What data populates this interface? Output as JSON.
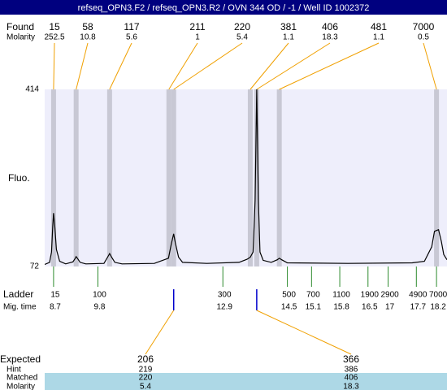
{
  "chart_data": {
    "type": "electropherogram",
    "title": "refseq_OPN3.F2 / refseq_OPN3.R2 / OVN 344 OD  / -1 / Well ID 1002372",
    "y_label": "Fluo.",
    "ylim": [
      72,
      414
    ],
    "yticks": [
      72,
      414
    ],
    "xlim": [
      8.48,
      18.46
    ],
    "found": {
      "label": "Found",
      "molarity_label": "Molarity",
      "sizes": [
        15,
        58,
        117,
        211,
        220,
        381,
        406,
        481,
        7000
      ],
      "molarities": [
        252.5,
        10.8,
        5.6,
        1,
        5.4,
        1.1,
        18.3,
        1.1,
        0.5
      ],
      "times": [
        8.7,
        9.26,
        10.09,
        11.56,
        11.68,
        13.58,
        13.74,
        14.3,
        18.2
      ]
    },
    "ladder": {
      "label": "Ladder",
      "time_label": "Mig. time",
      "sizes": [
        15,
        100,
        300,
        500,
        700,
        1100,
        1900,
        2900,
        4900,
        7000
      ],
      "times": [
        8.7,
        9.8,
        12.9,
        14.5,
        15.1,
        15.8,
        16.5,
        17,
        17.7,
        18.2
      ]
    },
    "trace": {
      "x": [
        8.48,
        8.6,
        8.65,
        8.68,
        8.7,
        8.73,
        8.77,
        8.85,
        9.0,
        9.18,
        9.24,
        9.26,
        9.29,
        9.36,
        9.5,
        9.95,
        10.04,
        10.09,
        10.14,
        10.22,
        10.4,
        11.2,
        11.55,
        11.62,
        11.68,
        11.72,
        11.8,
        11.9,
        12.5,
        13.3,
        13.5,
        13.58,
        13.65,
        13.7,
        13.74,
        13.78,
        13.82,
        13.9,
        14.1,
        14.25,
        14.3,
        14.36,
        14.5,
        16.0,
        17.6,
        17.9,
        18.08,
        18.15,
        18.25,
        18.32,
        18.38,
        18.46
      ],
      "y": [
        76,
        80,
        100,
        150,
        175,
        150,
        105,
        82,
        77,
        81,
        88,
        91,
        88,
        80,
        77,
        78,
        90,
        97,
        90,
        80,
        77,
        78,
        88,
        115,
        135,
        118,
        90,
        80,
        78,
        80,
        86,
        90,
        100,
        200,
        414,
        200,
        100,
        84,
        80,
        85,
        88,
        85,
        79,
        78,
        79,
        82,
        110,
        140,
        143,
        120,
        95,
        85
      ]
    },
    "expected": {
      "labels": [
        "Expected",
        "Hint",
        "Matched",
        "Molarity"
      ],
      "expected": [
        206,
        366
      ],
      "hint": [
        219,
        386
      ],
      "matched": [
        220,
        406
      ],
      "molarity": [
        5.4,
        18.3
      ]
    }
  }
}
